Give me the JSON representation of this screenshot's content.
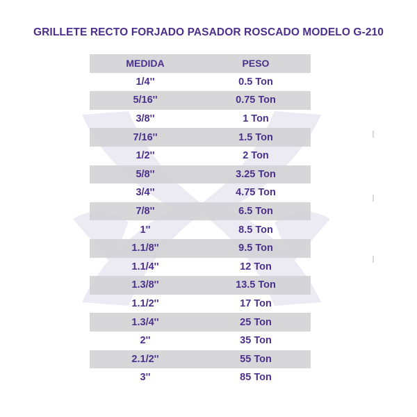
{
  "title": "GRILLETE RECTO FORJADO PASADOR ROSCADO MODELO G-210",
  "colors": {
    "text": "#4b2f8c",
    "row_shade": "#d0d0d4",
    "watermark": "#ecebf4"
  },
  "table": {
    "headers": {
      "medida": "MEDIDA",
      "peso": "PESO"
    },
    "rows": [
      {
        "medida": "1/4''",
        "peso": "0.5 Ton"
      },
      {
        "medida": "5/16''",
        "peso": "0.75 Ton"
      },
      {
        "medida": "3/8''",
        "peso": "1 Ton"
      },
      {
        "medida": "7/16''",
        "peso": "1.5 Ton"
      },
      {
        "medida": "1/2''",
        "peso": "2 Ton"
      },
      {
        "medida": "5/8''",
        "peso": "3.25 Ton"
      },
      {
        "medida": "3/4''",
        "peso": "4.75 Ton"
      },
      {
        "medida": "7/8''",
        "peso": "6.5 Ton"
      },
      {
        "medida": "1''",
        "peso": "8.5 Ton"
      },
      {
        "medida": "1.1/8''",
        "peso": "9.5 Ton"
      },
      {
        "medida": "1.1/4''",
        "peso": "12 Ton"
      },
      {
        "medida": "1.3/8''",
        "peso": "13.5 Ton"
      },
      {
        "medida": "1.1/2''",
        "peso": "17 Ton"
      },
      {
        "medida": "1.3/4''",
        "peso": "25 Ton"
      },
      {
        "medida": "2''",
        "peso": "35 Ton"
      },
      {
        "medida": "2.1/2''",
        "peso": "55 Ton"
      },
      {
        "medida": "3''",
        "peso": "85 Ton"
      }
    ]
  }
}
